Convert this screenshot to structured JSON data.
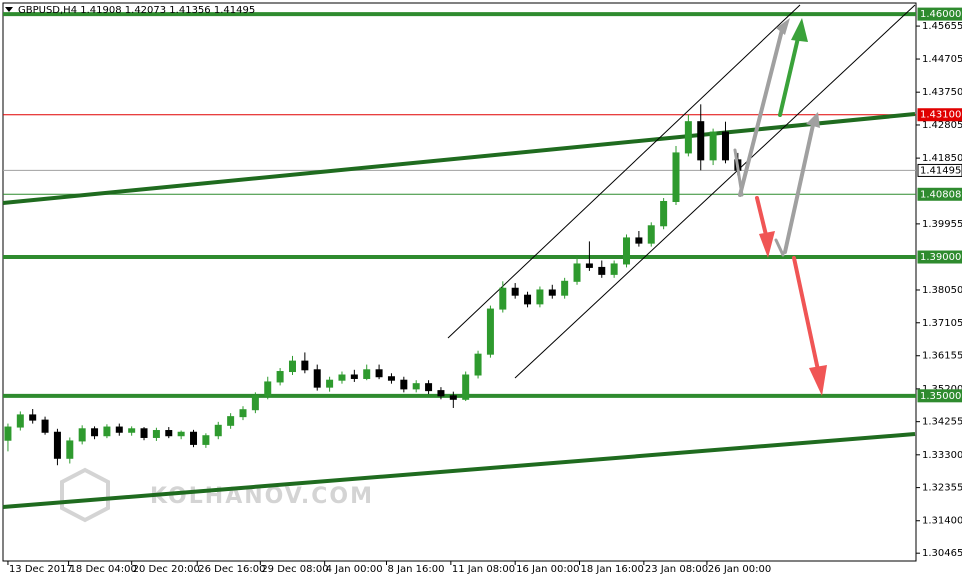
{
  "chart_data": {
    "type": "candlestick",
    "title": "GBPUSD,H4  1.41908 1.42073 1.41356 1.41495",
    "watermark": "KOLHANOV.COM",
    "up_color": "#2e9a2e",
    "down_color": "#000000",
    "open": [
      1.3372,
      1.341,
      1.3445,
      1.343,
      1.3395,
      1.332,
      1.337,
      1.3405,
      1.3385,
      1.341,
      1.3395,
      1.3405,
      1.338,
      1.34,
      1.3385,
      1.3395,
      1.336,
      1.3385,
      1.3415,
      1.344,
      1.346,
      1.35,
      1.354,
      1.357,
      1.36,
      1.3575,
      1.3525,
      1.3545,
      1.356,
      1.355,
      1.3575,
      1.3555,
      1.3545,
      1.352,
      1.3535,
      1.3515,
      1.35,
      1.349,
      1.356,
      1.362,
      1.375,
      1.381,
      1.379,
      1.3765,
      1.3805,
      1.379,
      1.383,
      1.388,
      1.387,
      1.385,
      1.388,
      1.3955,
      1.394,
      1.399,
      1.406,
      1.42,
      1.429,
      1.418,
      1.426,
      1.418
    ],
    "high": [
      1.342,
      1.3455,
      1.3462,
      1.344,
      1.3405,
      1.338,
      1.3415,
      1.3412,
      1.3418,
      1.342,
      1.3412,
      1.341,
      1.3408,
      1.341,
      1.34,
      1.3402,
      1.3392,
      1.3425,
      1.345,
      1.347,
      1.351,
      1.3555,
      1.358,
      1.3615,
      1.3625,
      1.359,
      1.3555,
      1.357,
      1.3575,
      1.359,
      1.359,
      1.3565,
      1.3555,
      1.3545,
      1.3545,
      1.3525,
      1.3512,
      1.357,
      1.363,
      1.376,
      1.383,
      1.3825,
      1.38,
      1.3815,
      1.382,
      1.384,
      1.39,
      1.3945,
      1.389,
      1.389,
      1.3965,
      1.3975,
      1.4,
      1.407,
      1.422,
      1.431,
      1.434,
      1.427,
      1.429,
      1.42
    ],
    "low": [
      1.334,
      1.34,
      1.342,
      1.3388,
      1.33,
      1.3305,
      1.336,
      1.3375,
      1.3378,
      1.3385,
      1.3385,
      1.3372,
      1.337,
      1.3378,
      1.3375,
      1.3352,
      1.335,
      1.3375,
      1.3405,
      1.343,
      1.345,
      1.349,
      1.353,
      1.356,
      1.3565,
      1.3515,
      1.3512,
      1.3535,
      1.354,
      1.3545,
      1.3548,
      1.3535,
      1.351,
      1.351,
      1.3505,
      1.349,
      1.3465,
      1.3485,
      1.355,
      1.361,
      1.374,
      1.378,
      1.3755,
      1.3755,
      1.378,
      1.378,
      1.382,
      1.386,
      1.384,
      1.384,
      1.387,
      1.393,
      1.393,
      1.398,
      1.405,
      1.419,
      1.415,
      1.4165,
      1.417,
      1.4135
    ],
    "close": [
      1.341,
      1.3445,
      1.343,
      1.3395,
      1.332,
      1.337,
      1.3405,
      1.3385,
      1.341,
      1.3395,
      1.3405,
      1.338,
      1.34,
      1.3385,
      1.3395,
      1.336,
      1.3385,
      1.3415,
      1.344,
      1.346,
      1.35,
      1.354,
      1.357,
      1.36,
      1.3575,
      1.3525,
      1.3545,
      1.356,
      1.355,
      1.3575,
      1.3555,
      1.3545,
      1.352,
      1.3535,
      1.3515,
      1.35,
      1.349,
      1.356,
      1.362,
      1.375,
      1.381,
      1.379,
      1.3765,
      1.3805,
      1.379,
      1.383,
      1.388,
      1.387,
      1.385,
      1.388,
      1.3955,
      1.394,
      1.399,
      1.406,
      1.42,
      1.429,
      1.418,
      1.426,
      1.418,
      1.415
    ],
    "xlim": [
      -0.4,
      73.4
    ],
    "xticks": [
      {
        "value": 0,
        "label": "13 Dec 2017"
      },
      {
        "value": 4.9,
        "label": "18 Dec 04:00"
      },
      {
        "value": 10,
        "label": "20 Dec 20:00"
      },
      {
        "value": 15.3,
        "label": "26 Dec 16:00"
      },
      {
        "value": 20.4,
        "label": "29 Dec 08:00"
      },
      {
        "value": 25.6,
        "label": "4 Jan 00:00"
      },
      {
        "value": 30.6,
        "label": "8 Jan 16:00"
      },
      {
        "value": 35.8,
        "label": "11 Jan 08:00"
      },
      {
        "value": 41,
        "label": "16 Jan 00:00"
      },
      {
        "value": 46.2,
        "label": "18 Jan 16:00"
      },
      {
        "value": 51.4,
        "label": "23 Jan 08:00"
      },
      {
        "value": 56.5,
        "label": "26 Jan 00:00"
      }
    ],
    "ylim": [
      1.3024,
      1.4632
    ],
    "yticks": [
      {
        "value": 1.45655,
        "label": "1.45655"
      },
      {
        "value": 1.44705,
        "label": "1.44705"
      },
      {
        "value": 1.4375,
        "label": "1.43750"
      },
      {
        "value": 1.42805,
        "label": "1.42805"
      },
      {
        "value": 1.4185,
        "label": "1.41850"
      },
      {
        "value": 1.39955,
        "label": "1.39955"
      },
      {
        "value": 1.3805,
        "label": "1.38050"
      },
      {
        "value": 1.37105,
        "label": "1.37105"
      },
      {
        "value": 1.36155,
        "label": "1.36155"
      },
      {
        "value": 1.352,
        "label": "1.35200"
      },
      {
        "value": 1.34255,
        "label": "1.34255"
      },
      {
        "value": 1.333,
        "label": "1.33300"
      },
      {
        "value": 1.32355,
        "label": "1.32355"
      },
      {
        "value": 1.314,
        "label": "1.31400"
      },
      {
        "value": 1.30465,
        "label": "1.30465"
      }
    ],
    "levels": [
      {
        "value": 1.46,
        "label": "1.46000",
        "color": "#2e8b2e",
        "width": 4
      },
      {
        "value": 1.431,
        "label": "1.43100",
        "color": "#e00000",
        "width": 1
      },
      {
        "value": 1.41495,
        "label": "1.41495",
        "color": "#a0a0a0",
        "width": 1
      },
      {
        "value": 1.40808,
        "label": "1.40808",
        "color": "#2e8b2e",
        "width": 1
      },
      {
        "value": 1.39,
        "label": "1.39000",
        "color": "#2e8b2e",
        "width": 4
      },
      {
        "value": 1.35,
        "label": "1.35000",
        "color": "#2e8b2e",
        "width": 4
      }
    ]
  }
}
